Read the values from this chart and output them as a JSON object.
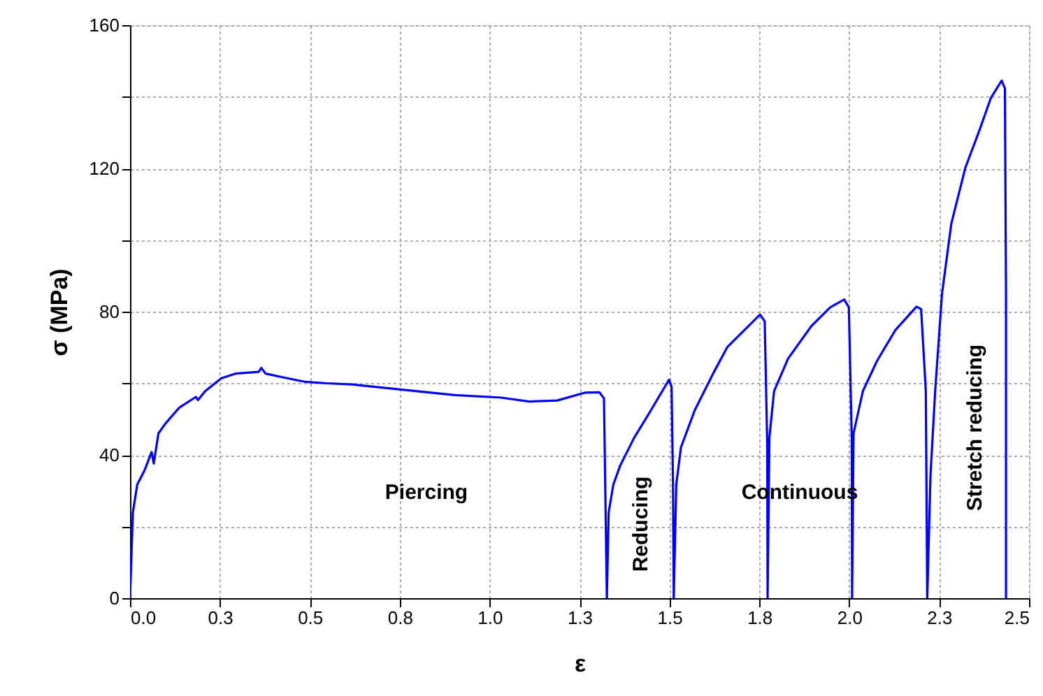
{
  "chart_data": {
    "type": "line",
    "xlabel": "ε",
    "ylabel": "σ (MPa)",
    "x": [
      0,
      0.008,
      0.02,
      0.04,
      0.06,
      0.066,
      0.079,
      0.098,
      0.137,
      0.183,
      0.189,
      0.209,
      0.254,
      0.293,
      0.358,
      0.365,
      0.377,
      0.423,
      0.488,
      0.546,
      0.617,
      0.747,
      0.903,
      1.032,
      1.11,
      1.188,
      1.266,
      1.305,
      1.318,
      1.326,
      1.331,
      1.344,
      1.363,
      1.402,
      1.441,
      1.48,
      1.499,
      1.506,
      1.51,
      1.512,
      1.519,
      1.532,
      1.571,
      1.623,
      1.661,
      1.713,
      1.752,
      1.765,
      1.772,
      1.773,
      1.778,
      1.791,
      1.83,
      1.895,
      1.947,
      1.986,
      1.999,
      2.007,
      2.008,
      2.012,
      2.038,
      2.077,
      2.128,
      2.187,
      2.2,
      2.213,
      2.217,
      2.226,
      2.239,
      2.258,
      2.284,
      2.323,
      2.362,
      2.394,
      2.424,
      2.433,
      2.436,
      2.436
    ],
    "series": [
      {
        "color": "#0000ff",
        "values": [
          0,
          24,
          31.7,
          35.6,
          40.8,
          37.6,
          46,
          48.7,
          53.2,
          56.2,
          55.3,
          57.8,
          61.4,
          62.7,
          63.2,
          64.3,
          62.7,
          61.7,
          60.4,
          60,
          59.7,
          58.3,
          56.7,
          56,
          54.9,
          55.2,
          57.4,
          57.5,
          55.8,
          0,
          23.9,
          31.7,
          37,
          44.8,
          51.2,
          57.8,
          61,
          59,
          31.7,
          0,
          31.7,
          42.1,
          52.6,
          63,
          70.1,
          75.3,
          79.2,
          77.3,
          42.8,
          0,
          44.8,
          57.8,
          66.9,
          76,
          81.2,
          83.4,
          81.2,
          44.8,
          0,
          46,
          57.8,
          66.2,
          74.8,
          81.4,
          80.7,
          57.8,
          0,
          34.3,
          57.8,
          85,
          104.6,
          120.2,
          130.6,
          139.7,
          144.5,
          142.3,
          85,
          0
        ]
      }
    ],
    "xlim": [
      0,
      2.5
    ],
    "xticks": [
      {
        "value": 0,
        "label": "0.0"
      },
      {
        "value": 0.25,
        "label": "0.3"
      },
      {
        "value": 0.5,
        "label": "0.5"
      },
      {
        "value": 0.75,
        "label": "0.8"
      },
      {
        "value": 1,
        "label": "1.0"
      },
      {
        "value": 1.25,
        "label": "1.3"
      },
      {
        "value": 1.5,
        "label": "1.5"
      },
      {
        "value": 1.75,
        "label": "1.8"
      },
      {
        "value": 2,
        "label": "2.0"
      },
      {
        "value": 2.25,
        "label": "2.3"
      },
      {
        "value": 2.5,
        "label": "2.5"
      }
    ],
    "ylim": [
      0,
      160
    ],
    "yticks": [
      0,
      {
        "value": 20,
        "label": null
      },
      40,
      {
        "value": 60,
        "label": null
      },
      80,
      {
        "value": 100,
        "label": null
      },
      120,
      {
        "value": 140,
        "label": null
      },
      160
    ],
    "grid": true,
    "line_style": "solid",
    "annotations": [
      "Piercing",
      "Reducing",
      "Continuous",
      "Stretch reducing"
    ]
  }
}
